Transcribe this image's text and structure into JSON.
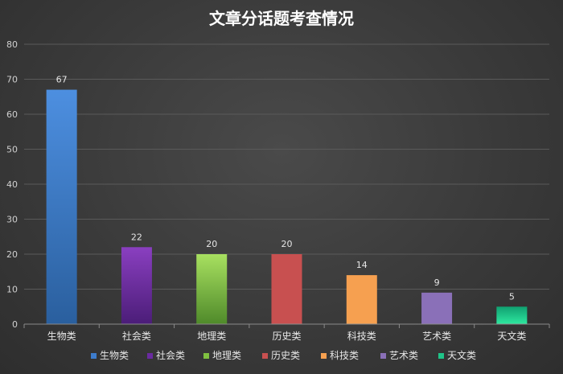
{
  "chart_data": {
    "type": "bar",
    "title": "文章分话题考查情况",
    "categories": [
      "生物类",
      "社会类",
      "地理类",
      "历史类",
      "科技类",
      "艺术类",
      "天文类"
    ],
    "values": [
      67,
      22,
      20,
      20,
      14,
      9,
      5
    ],
    "data_labels": [
      "67",
      "22",
      "20",
      "20",
      "14",
      "9",
      "5"
    ],
    "y_ticks": [
      "0",
      "10",
      "20",
      "30",
      "40",
      "50",
      "60",
      "70",
      "80"
    ],
    "ylim": [
      0,
      80
    ],
    "grid": true,
    "legend_position": "bottom",
    "legend": [
      "生物类",
      "社会类",
      "地理类",
      "历史类",
      "科技类",
      "艺术类",
      "天文类"
    ],
    "colors": [
      [
        "#4d8fe0",
        "#2a5f9e"
      ],
      [
        "#8a3fc0",
        "#4b1d78"
      ],
      [
        "#a8e060",
        "#4f8a2a"
      ],
      [
        "#c85050",
        "#c85050"
      ],
      [
        "#f6a050",
        "#f6a050"
      ],
      [
        "#8a70b8",
        "#8a70b8"
      ],
      [
        "#10a070",
        "#2ee8a0"
      ]
    ],
    "legend_colors": [
      "#3d7ccc",
      "#6a2aa0",
      "#7fc040",
      "#c85050",
      "#f6a050",
      "#8a70b8",
      "#1fc488"
    ]
  }
}
